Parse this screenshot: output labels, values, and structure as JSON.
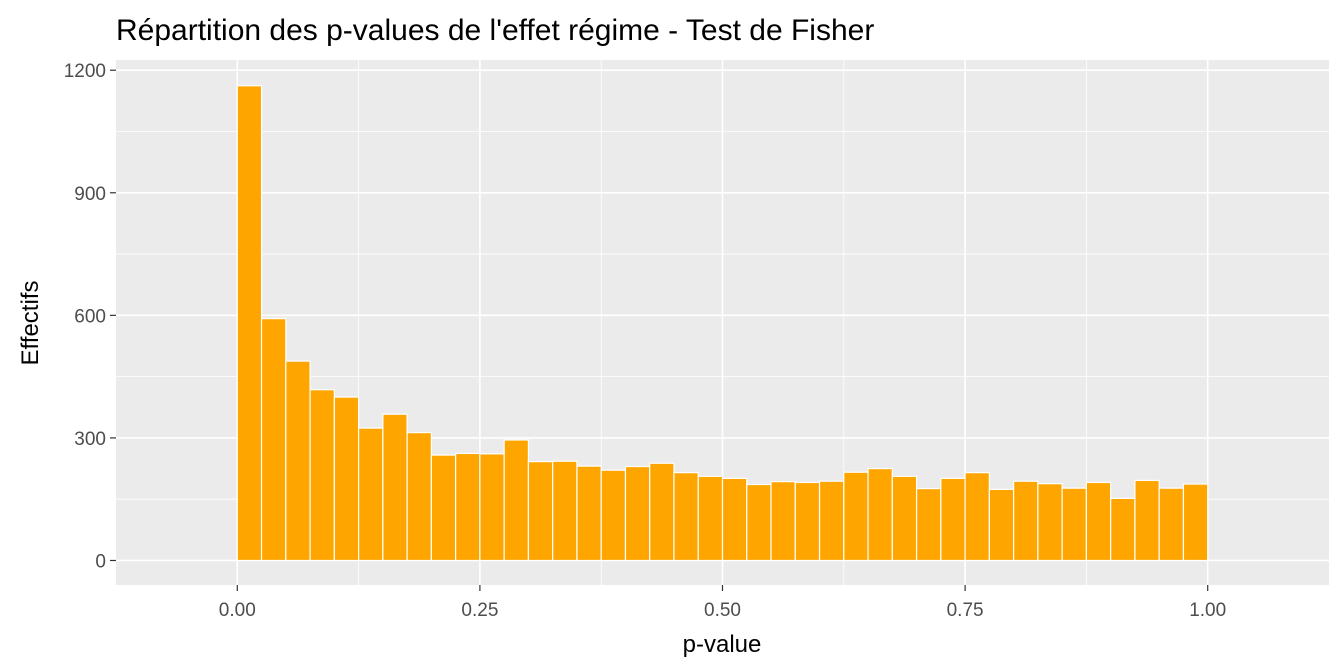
{
  "chart_data": {
    "type": "bar",
    "title": "Répartition des p-values de l'effet régime - Test de Fisher",
    "xlabel": "p-value",
    "ylabel": "Effectifs",
    "x_ticks": [
      "0.00",
      "0.25",
      "0.50",
      "0.75",
      "1.00"
    ],
    "y_ticks": [
      "0",
      "300",
      "600",
      "900",
      "1200"
    ],
    "xlim": [
      -0.125,
      1.125
    ],
    "ylim": [
      -60,
      1225
    ],
    "bin_width": 0.025,
    "bin_centers": [
      0.0125,
      0.0375,
      0.0625,
      0.0875,
      0.1125,
      0.1375,
      0.1625,
      0.1875,
      0.2125,
      0.2375,
      0.2625,
      0.2875,
      0.3125,
      0.3375,
      0.3625,
      0.3875,
      0.4125,
      0.4375,
      0.4625,
      0.4875,
      0.5125,
      0.5375,
      0.5625,
      0.5875,
      0.6125,
      0.6375,
      0.6625,
      0.6875,
      0.7125,
      0.7375,
      0.7625,
      0.7875,
      0.8125,
      0.8375,
      0.8625,
      0.8875,
      0.9125,
      0.9375,
      0.9625,
      0.9875
    ],
    "values": [
      1162,
      592,
      488,
      418,
      400,
      324,
      358,
      313,
      258,
      262,
      261,
      295,
      242,
      243,
      231,
      221,
      230,
      238,
      215,
      206,
      201,
      186,
      193,
      191,
      194,
      216,
      225,
      206,
      176,
      201,
      215,
      174,
      194,
      188,
      177,
      191,
      152,
      196,
      177,
      187
    ],
    "grid": true,
    "colors": {
      "bar_fill": "#FFA500",
      "bar_outline": "#ffffff",
      "panel_bg": "#EBEBEB",
      "grid": "#ffffff"
    }
  }
}
